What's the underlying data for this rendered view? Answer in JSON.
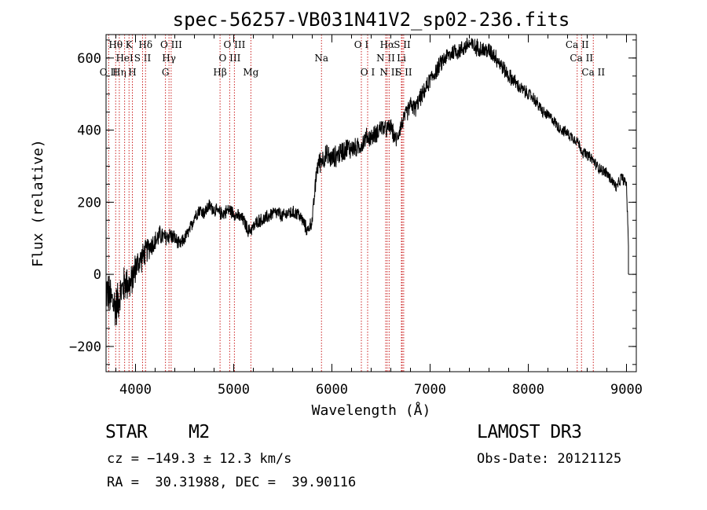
{
  "chart_data": {
    "type": "line",
    "title": "spec-56257-VB031N41V2_sp02-236.fits",
    "xlabel": "Wavelength (Å)",
    "ylabel": "Flux (relative)",
    "xlim": [
      3700,
      9100
    ],
    "ylim": [
      -270,
      665
    ],
    "xticks": [
      4000,
      5000,
      6000,
      7000,
      8000,
      9000
    ],
    "xtick_labels": [
      "4000",
      "5000",
      "6000",
      "7000",
      "8000",
      "9000"
    ],
    "yticks": [
      -200,
      0,
      200,
      400,
      600
    ],
    "ytick_labels": [
      "−200",
      "0",
      "200",
      "400",
      "600"
    ],
    "series": [
      {
        "name": "flux",
        "x": [
          3700,
          3750,
          3800,
          3850,
          3900,
          3950,
          4000,
          4050,
          4100,
          4150,
          4200,
          4250,
          4300,
          4350,
          4400,
          4450,
          4500,
          4550,
          4600,
          4650,
          4700,
          4750,
          4800,
          4850,
          4900,
          4950,
          5000,
          5050,
          5100,
          5150,
          5200,
          5250,
          5300,
          5350,
          5400,
          5450,
          5500,
          5550,
          5600,
          5650,
          5700,
          5750,
          5800,
          5850,
          5900,
          5950,
          6000,
          6050,
          6100,
          6150,
          6200,
          6250,
          6300,
          6350,
          6400,
          6450,
          6500,
          6550,
          6600,
          6650,
          6700,
          6750,
          6800,
          6850,
          6900,
          6950,
          7000,
          7050,
          7100,
          7150,
          7200,
          7250,
          7300,
          7350,
          7400,
          7450,
          7500,
          7550,
          7600,
          7650,
          7700,
          7750,
          7800,
          7850,
          7900,
          7950,
          8000,
          8050,
          8100,
          8150,
          8200,
          8250,
          8300,
          8350,
          8400,
          8450,
          8500,
          8550,
          8600,
          8650,
          8700,
          8750,
          8800,
          8850,
          8900,
          8950,
          9000,
          9020
        ],
        "y": [
          -40,
          -70,
          -90,
          -50,
          -20,
          -30,
          20,
          40,
          60,
          80,
          90,
          110,
          100,
          110,
          100,
          80,
          100,
          120,
          160,
          180,
          170,
          190,
          180,
          170,
          170,
          180,
          170,
          160,
          150,
          120,
          130,
          150,
          150,
          160,
          170,
          170,
          160,
          170,
          170,
          170,
          150,
          120,
          150,
          300,
          320,
          330,
          320,
          330,
          340,
          350,
          350,
          350,
          360,
          380,
          380,
          390,
          410,
          400,
          410,
          370,
          410,
          440,
          470,
          460,
          490,
          510,
          540,
          560,
          580,
          600,
          610,
          620,
          620,
          630,
          640,
          630,
          630,
          620,
          620,
          610,
          590,
          570,
          550,
          540,
          520,
          510,
          500,
          490,
          470,
          450,
          440,
          430,
          410,
          400,
          390,
          380,
          370,
          340,
          330,
          320,
          300,
          290,
          280,
          260,
          240,
          270,
          250,
          80
        ],
        "noise_amplitude": [
          70,
          70,
          70,
          60,
          60,
          55,
          50,
          45,
          40,
          38,
          35,
          32,
          30,
          28,
          25,
          22,
          22,
          22,
          22,
          22,
          22,
          22,
          22,
          22,
          22,
          22,
          22,
          22,
          22,
          22,
          22,
          22,
          22,
          22,
          22,
          22,
          22,
          22,
          22,
          22,
          22,
          22,
          22,
          35,
          35,
          35,
          35,
          35,
          35,
          35,
          35,
          30,
          30,
          30,
          30,
          30,
          30,
          28,
          28,
          28,
          28,
          28,
          28,
          28,
          28,
          28,
          28,
          28,
          28,
          28,
          28,
          28,
          28,
          28,
          28,
          28,
          28,
          28,
          28,
          28,
          28,
          25,
          25,
          25,
          22,
          22,
          20,
          20,
          20,
          20,
          18,
          18,
          18,
          18,
          18,
          18,
          18,
          18,
          18,
          18,
          18,
          18,
          18,
          18,
          18,
          18,
          18,
          5
        ]
      }
    ],
    "lines": [
      {
        "name": "O II",
        "wavelength": 3727,
        "row": 3
      },
      {
        "name": "Hθ",
        "wavelength": 3798,
        "row": 1
      },
      {
        "name": "Hη",
        "wavelength": 3835,
        "row": 3
      },
      {
        "name": "HeI",
        "wavelength": 3889,
        "row": 2
      },
      {
        "name": "K",
        "wavelength": 3934,
        "row": 1
      },
      {
        "name": "H",
        "wavelength": 3968,
        "row": 3
      },
      {
        "name": "S II",
        "wavelength": 4072,
        "row": 2
      },
      {
        "name": "Hδ",
        "wavelength": 4102,
        "row": 1
      },
      {
        "name": "G",
        "wavelength": 4305,
        "row": 3
      },
      {
        "name": "Hγ",
        "wavelength": 4341,
        "row": 2
      },
      {
        "name": "O III",
        "wavelength": 4363,
        "row": 1
      },
      {
        "name": "Hβ",
        "wavelength": 4861,
        "row": 3
      },
      {
        "name": "O III",
        "wavelength": 4959,
        "row": 2
      },
      {
        "name": "O III",
        "wavelength": 5007,
        "row": 1
      },
      {
        "name": "Mg",
        "wavelength": 5175,
        "row": 3
      },
      {
        "name": "Na",
        "wavelength": 5894,
        "row": 2
      },
      {
        "name": "O I",
        "wavelength": 6300,
        "row": 1
      },
      {
        "name": "O I",
        "wavelength": 6364,
        "row": 3
      },
      {
        "name": "N II",
        "wavelength": 6548,
        "row": 2
      },
      {
        "name": "Hα",
        "wavelength": 6563,
        "row": 1
      },
      {
        "name": "N II",
        "wavelength": 6583,
        "row": 3
      },
      {
        "name": "S II",
        "wavelength": 6716,
        "row": 1
      },
      {
        "name": "Li",
        "wavelength": 6708,
        "row": 2
      },
      {
        "name": "S II",
        "wavelength": 6731,
        "row": 3
      },
      {
        "name": "Ca II",
        "wavelength": 8498,
        "row": 1
      },
      {
        "name": "Ca II",
        "wavelength": 8542,
        "row": 2
      },
      {
        "name": "Ca II",
        "wavelength": 8662,
        "row": 3
      }
    ]
  },
  "info": {
    "object_class": "STAR",
    "subclass": "M2",
    "survey": "LAMOST DR3",
    "cz": "cz = −149.3 ± 12.3 km/s",
    "obs_date": "Obs-Date: 20121125",
    "coords": "RA =  30.31988, DEC =  39.90116"
  },
  "colors": {
    "line_marker": "#cc2222",
    "spectrum": "#000000",
    "axes": "#000000"
  }
}
